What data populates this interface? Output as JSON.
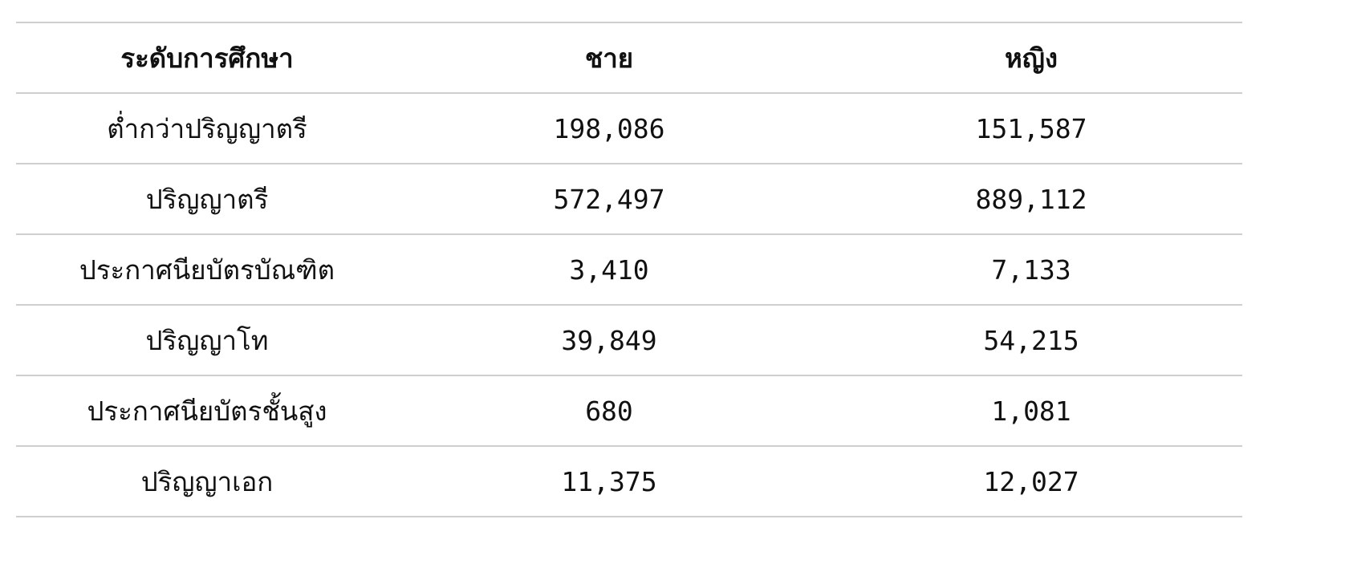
{
  "table": {
    "headers": [
      "ระดับการศึกษา",
      "ชาย",
      "หญิง"
    ],
    "rows": [
      [
        "ต่ำกว่าปริญญาตรี",
        "198,086",
        "151,587"
      ],
      [
        "ปริญญาตรี",
        "572,497",
        "889,112"
      ],
      [
        "ประกาศนียบัตรบัณฑิต",
        "3,410",
        "7,133"
      ],
      [
        "ปริญญาโท",
        "39,849",
        "54,215"
      ],
      [
        "ประกาศนียบัตรชั้นสูง",
        "680",
        "1,081"
      ],
      [
        "ปริญญาเอก",
        "11,375",
        "12,027"
      ]
    ]
  }
}
